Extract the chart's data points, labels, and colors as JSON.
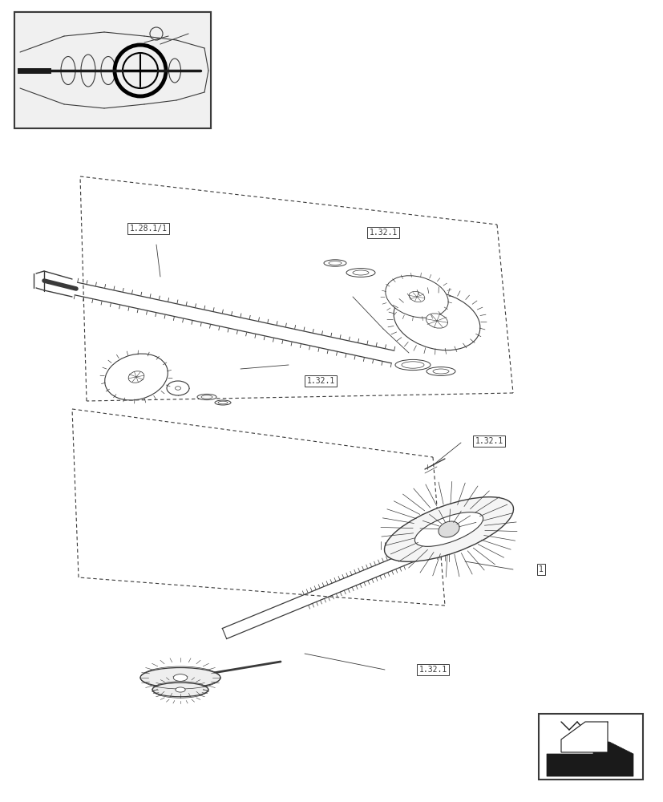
{
  "bg_color": "#ffffff",
  "line_color": "#3a3a3a",
  "label_color": "#3a3a3a",
  "labels": {
    "ref_top": "1.32.1",
    "ref_mid1": "1.28.1/1",
    "ref_mid2": "1.32.1",
    "ref_mid3": "1.32.1",
    "ref_bot": "1.32.1",
    "ref_bot2": "1"
  },
  "figsize": [
    8.28,
    10.0
  ],
  "dpi": 100
}
